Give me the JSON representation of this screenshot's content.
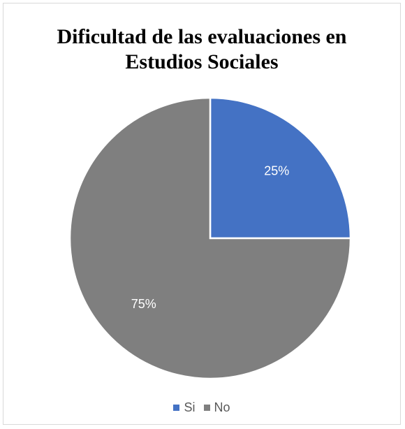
{
  "chart_data": {
    "type": "pie",
    "title_lines": [
      "Dificultad de las evaluaciones en",
      "Estudios Sociales"
    ],
    "categories": [
      "Si",
      "No"
    ],
    "values": [
      25,
      75
    ],
    "data_labels": [
      "25%",
      "75%"
    ],
    "colors": [
      "#4472c4",
      "#7f7f7f"
    ],
    "start_angle_deg": 0,
    "direction": "clockwise",
    "legend_position": "bottom",
    "legend": [
      "Si",
      "No"
    ]
  }
}
